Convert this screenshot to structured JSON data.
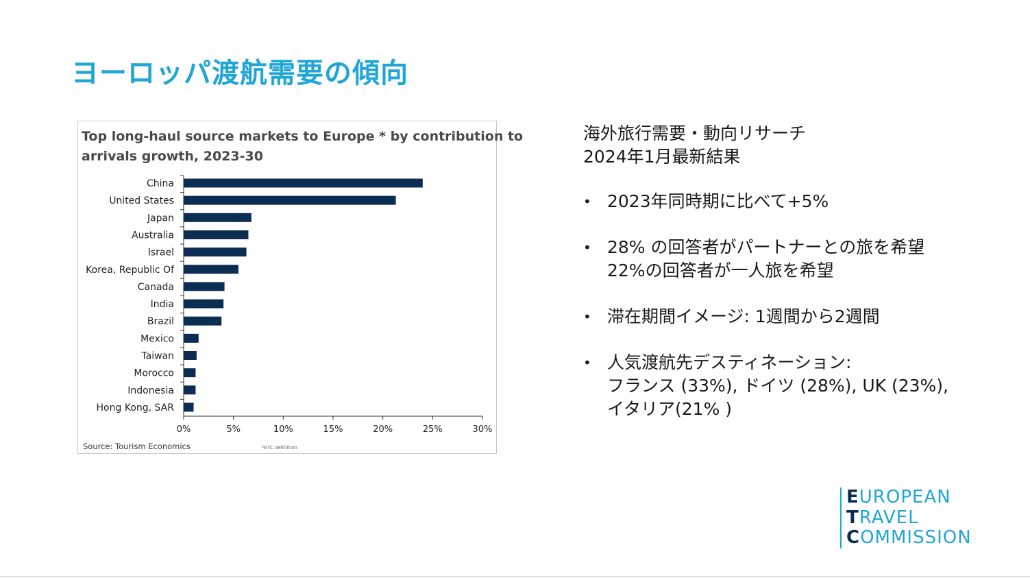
{
  "slide": {
    "title": "ヨーロッパ渡航需要の傾向"
  },
  "chart_data": {
    "type": "bar",
    "orientation": "horizontal",
    "title_line1": "Top long-haul source markets to Europe * by contribution to",
    "title_line2": "arrivals growth, 2023-30",
    "categories": [
      "China",
      "United States",
      "Japan",
      "Australia",
      "Israel",
      "Korea, Republic Of",
      "Canada",
      "India",
      "Brazil",
      "Mexico",
      "Taiwan",
      "Morocco",
      "Indonesia",
      "Hong Kong, SAR"
    ],
    "values": [
      24.0,
      21.3,
      6.8,
      6.5,
      6.3,
      5.5,
      4.1,
      4.0,
      3.8,
      1.5,
      1.3,
      1.2,
      1.2,
      1.0
    ],
    "unit": "%",
    "xlim": [
      0,
      30
    ],
    "ticks": [
      0,
      5,
      10,
      15,
      20,
      25,
      30
    ],
    "tick_labels": [
      "0%",
      "5%",
      "10%",
      "15%",
      "20%",
      "25%",
      "30%"
    ],
    "grid": false,
    "bar_color": "#0c2d52",
    "source": "Source: Tourism Economics",
    "footnote": "*ETC definition"
  },
  "research": {
    "heading_line1": "海外旅行需要・動向リサーチ",
    "heading_line2": "2024年1月最新結果"
  },
  "bullets": [
    {
      "lines": [
        "2023年同時期に比べて+5%"
      ]
    },
    {
      "lines": [
        "28% の回答者がパートナーとの旅を希望",
        "22%の回答者が一人旅を希望"
      ]
    },
    {
      "lines": [
        "滞在期間イメージ: 1週間から2週間"
      ]
    },
    {
      "lines": [
        "人気渡航先デスティネーション:",
        "フランス (33%), ドイツ (28%), UK (23%),",
        "イタリア(21% )"
      ]
    }
  ],
  "bullet_symbol": "•",
  "logo": {
    "line1_cap": "E",
    "line1_rest": "UROPEAN",
    "line2_cap": "T",
    "line2_rest": "RAVEL",
    "line3_cap": "C",
    "line3_rest": "OMMISSION",
    "accent_color": "#1fa6d8",
    "dark_color": "#0c2d52"
  }
}
